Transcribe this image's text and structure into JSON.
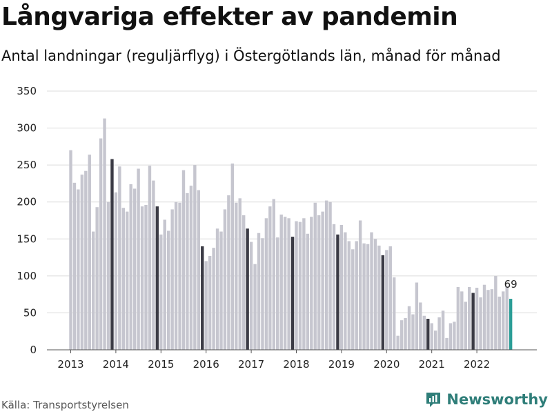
{
  "header": {
    "title": "Långvariga effekter av pandemin",
    "subtitle": "Antal landningar (reguljärflyg) i Östergötlands län, månad för månad"
  },
  "footer": {
    "source": "Källa: Transportstyrelsen",
    "brand": "Newsworthy"
  },
  "colors": {
    "bar": "#c6c6cf",
    "december": "#3b3b45",
    "latest": "#2a9d96",
    "grid": "#dcdcdc",
    "brand": "#2f7e79"
  },
  "chart_data": {
    "type": "bar",
    "start": "2013-01",
    "highlight": "december bars dark, latest bar teal",
    "ylim": [
      0,
      350
    ],
    "yticks": [
      0,
      50,
      100,
      150,
      200,
      250,
      300,
      350
    ],
    "xtick_labels": [
      "2013",
      "2014",
      "2015",
      "2016",
      "2017",
      "2018",
      "2019",
      "2020",
      "2021",
      "2022"
    ],
    "last_label": "69",
    "values": [
      270,
      226,
      217,
      237,
      242,
      264,
      160,
      193,
      286,
      313,
      200,
      258,
      213,
      248,
      192,
      187,
      224,
      218,
      245,
      194,
      196,
      249,
      229,
      194,
      156,
      176,
      161,
      190,
      200,
      199,
      243,
      212,
      222,
      250,
      216,
      140,
      120,
      127,
      138,
      164,
      160,
      190,
      209,
      252,
      199,
      205,
      182,
      164,
      146,
      116,
      158,
      151,
      178,
      194,
      204,
      152,
      183,
      180,
      178,
      153,
      174,
      173,
      178,
      157,
      180,
      199,
      182,
      187,
      202,
      200,
      170,
      156,
      169,
      159,
      147,
      136,
      147,
      175,
      144,
      143,
      159,
      150,
      141,
      128,
      135,
      140,
      98,
      19,
      40,
      43,
      59,
      48,
      91,
      64,
      46,
      42,
      36,
      26,
      44,
      53,
      16,
      36,
      38,
      85,
      79,
      65,
      85,
      77,
      84,
      71,
      88,
      81,
      82,
      100,
      72,
      79,
      86,
      69
    ]
  }
}
